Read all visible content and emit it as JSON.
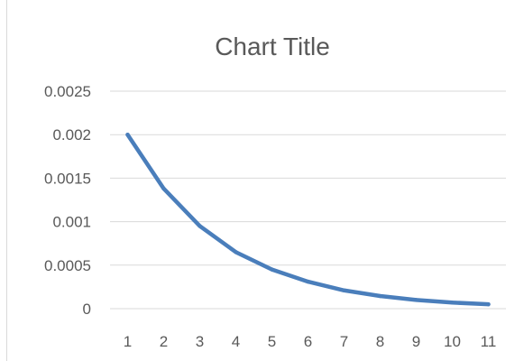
{
  "chart_data": {
    "type": "line",
    "title": "Chart Title",
    "xlabel": "",
    "ylabel": "",
    "categories": [
      "1",
      "2",
      "3",
      "4",
      "5",
      "6",
      "7",
      "8",
      "9",
      "10",
      "11"
    ],
    "series": [
      {
        "values": [
          0.002,
          0.00138,
          0.00095,
          0.00065,
          0.00045,
          0.00031,
          0.00021,
          0.000145,
          0.0001,
          7e-05,
          5e-05
        ]
      }
    ],
    "y_ticks": [
      "0",
      "0.0005",
      "0.001",
      "0.0015",
      "0.002",
      "0.0025"
    ],
    "ylim": [
      0,
      0.0025
    ],
    "grid": "horizontal",
    "legend": "none",
    "series_color": "#4a7ebb",
    "gridline_color": "#d9d9d9",
    "text_color": "#595959"
  }
}
